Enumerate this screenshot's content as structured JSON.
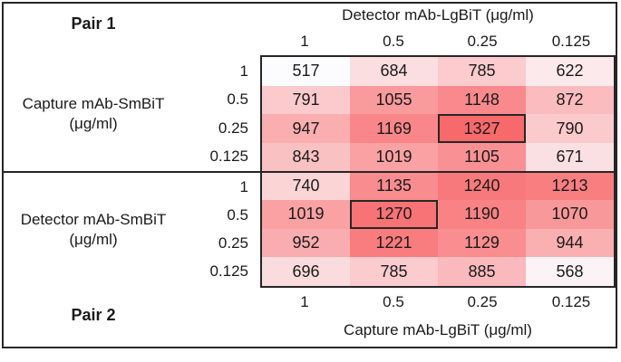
{
  "chart_data": {
    "type": "heatmap",
    "description": "Luminescence signal matrix for two antibody pair titrations, shaded white to red by value",
    "color_scale": {
      "min": 517,
      "max": 1327,
      "min_color": "#FCFCFF",
      "max_color": "#F8696B"
    },
    "tables": [
      {
        "name": "pair1",
        "pair_label": "Pair 1",
        "col_axis_title": "Detector mAb-LgBiT (μg/ml)",
        "row_axis_title_line1": "Capture mAb-SmBiT",
        "row_axis_title_line2": "(μg/ml)",
        "columns": [
          "1",
          "0.5",
          "0.25",
          "0.125"
        ],
        "rows": [
          "1",
          "0.5",
          "0.25",
          "0.125"
        ],
        "values": [
          [
            517,
            684,
            785,
            622
          ],
          [
            791,
            1055,
            1148,
            872
          ],
          [
            947,
            1169,
            1327,
            790
          ],
          [
            843,
            1019,
            1105,
            671
          ]
        ],
        "highlighted_cell": {
          "row": 2,
          "col": 2,
          "value": 1327
        }
      },
      {
        "name": "pair2",
        "pair_label": "Pair 2",
        "col_axis_title": "Capture mAb-LgBiT (μg/ml)",
        "row_axis_title_line1": "Detector mAb-SmBiT",
        "row_axis_title_line2": "(μg/ml)",
        "columns": [
          "1",
          "0.5",
          "0.25",
          "0.125"
        ],
        "rows": [
          "1",
          "0.5",
          "0.25",
          "0.125"
        ],
        "values": [
          [
            740,
            1135,
            1240,
            1213
          ],
          [
            1019,
            1270,
            1190,
            1070
          ],
          [
            952,
            1221,
            1129,
            944
          ],
          [
            696,
            785,
            885,
            568
          ]
        ],
        "highlighted_cell": {
          "row": 1,
          "col": 1,
          "value": 1270
        }
      }
    ]
  }
}
